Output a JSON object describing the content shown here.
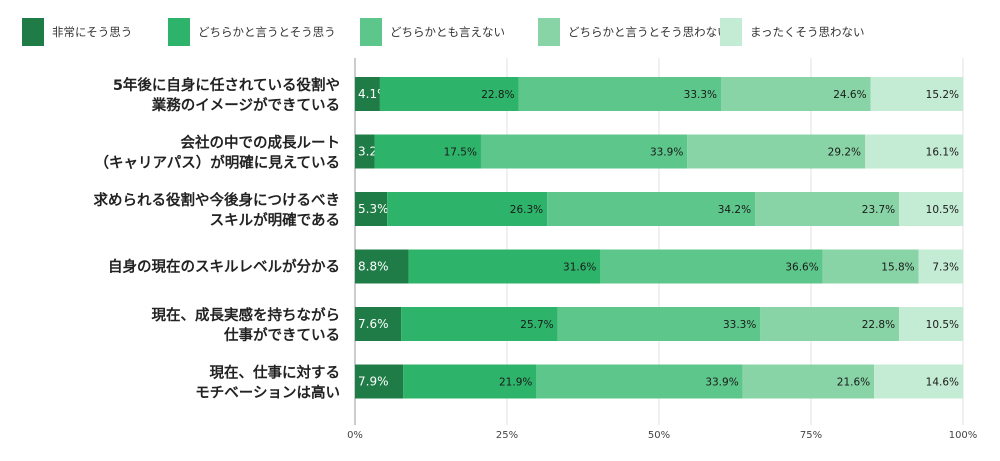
{
  "chart_data": {
    "type": "bar",
    "orientation": "horizontal",
    "stacked": true,
    "title": "",
    "xlabel": "",
    "ylabel": "",
    "xlim": [
      0,
      100
    ],
    "x_ticks": [
      "0%",
      "25%",
      "50%",
      "75%",
      "100%"
    ],
    "grid": true,
    "legend_position": "top",
    "categories": [
      [
        "5年後に自身に任されている役割や",
        "業務のイメージができている"
      ],
      [
        "会社の中での成長ルート",
        "（キャリアパス）が明確に見えている"
      ],
      [
        "求められる役割や今後身につけるべき",
        "スキルが明確である"
      ],
      [
        "自身の現在のスキルレベルが分かる"
      ],
      [
        "現在、成長実感を持ちながら",
        "仕事ができている"
      ],
      [
        "現在、仕事に対する",
        "モチベーションは高い"
      ]
    ],
    "series": [
      {
        "name": "非常にそう思う",
        "color": "#1f7c46",
        "values": [
          4.1,
          3.2,
          5.3,
          8.8,
          7.6,
          7.9
        ]
      },
      {
        "name": "どちらかと言うとそう思う",
        "color": "#2eb46a",
        "values": [
          22.8,
          17.5,
          26.3,
          31.6,
          25.7,
          21.9
        ]
      },
      {
        "name": "どちらかとも言えない",
        "color": "#5dc68a",
        "values": [
          33.3,
          33.9,
          34.2,
          36.6,
          33.3,
          33.9
        ]
      },
      {
        "name": "どちらかと言うとそう思わない",
        "color": "#88d4a6",
        "values": [
          24.6,
          29.2,
          23.7,
          15.8,
          22.8,
          21.6
        ]
      },
      {
        "name": "まったくそう思わない",
        "color": "#c4ebd3",
        "values": [
          15.2,
          16.1,
          10.5,
          7.3,
          10.5,
          14.6
        ]
      }
    ]
  }
}
